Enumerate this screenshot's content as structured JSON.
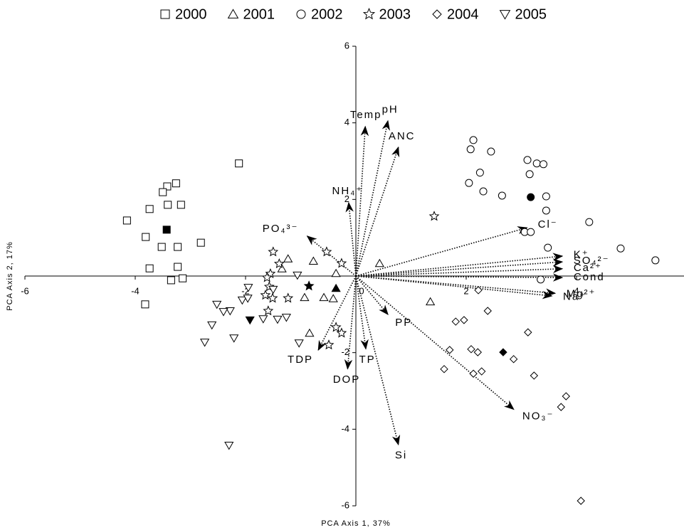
{
  "chart_data": {
    "type": "scatter",
    "xlabel": "PCA Axis 1, 37%",
    "ylabel": "PCA Axis 2, 17%",
    "xlim": [
      -6,
      6
    ],
    "ylim": [
      -6,
      6
    ],
    "xticks": [
      -6,
      -4,
      -2,
      0,
      2,
      4,
      6
    ],
    "yticks": [
      -6,
      -4,
      -2,
      2,
      4,
      6
    ],
    "series": [
      {
        "name": "2000",
        "marker": "square",
        "color": "#000000",
        "x": [
          -2.12,
          -3.26,
          -3.42,
          -3.5,
          -3.41,
          -3.17,
          -3.74,
          -4.15,
          -3.81,
          -3.52,
          -3.23,
          -2.81,
          -3.74,
          -3.23,
          -3.35,
          -3.14,
          -3.82
        ],
        "y": [
          2.94,
          2.42,
          2.34,
          2.19,
          1.86,
          1.86,
          1.75,
          1.45,
          1.02,
          0.76,
          0.76,
          0.87,
          0.2,
          0.24,
          -0.11,
          -0.06,
          -0.74
        ],
        "centroid": [
          -3.43,
          1.21
        ]
      },
      {
        "name": "2001",
        "marker": "triangle",
        "color": "#000000",
        "x": [
          -0.77,
          -1.23,
          0.43,
          -0.36,
          -0.58,
          -0.93,
          -0.41,
          -0.84,
          1.35,
          -1.34
        ],
        "y": [
          0.39,
          0.45,
          0.33,
          0.07,
          -0.56,
          -0.56,
          -0.59,
          -1.49,
          -0.67,
          0.19
        ],
        "centroid": [
          -0.36,
          -0.32
        ]
      },
      {
        "name": "2002",
        "marker": "circle",
        "color": "#000000",
        "x": [
          2.13,
          2.08,
          2.45,
          3.11,
          3.28,
          3.4,
          2.25,
          3.15,
          2.05,
          2.31,
          2.65,
          3.45,
          3.45,
          4.23,
          3.06,
          3.17,
          3.48,
          4.8,
          5.43,
          3.35
        ],
        "y": [
          3.55,
          3.31,
          3.25,
          3.03,
          2.94,
          2.92,
          2.7,
          2.66,
          2.43,
          2.21,
          2.1,
          2.08,
          1.71,
          1.41,
          1.15,
          1.15,
          0.74,
          0.72,
          0.41,
          -0.09
        ],
        "centroid": [
          3.17,
          2.06
        ]
      },
      {
        "name": "2003",
        "marker": "star",
        "color": "#000000",
        "x": [
          1.42,
          -0.53,
          -1.5,
          -1.39,
          -1.55,
          -1.61,
          -0.26,
          -1.57,
          -1.64,
          -1.51,
          -1.23,
          -1.59,
          -0.36,
          -0.26,
          -0.49
        ],
        "y": [
          1.56,
          0.63,
          0.63,
          0.32,
          0.06,
          -0.04,
          0.33,
          -0.28,
          -0.5,
          -0.58,
          -0.58,
          -0.91,
          -1.34,
          -1.49,
          -1.8
        ],
        "centroid": [
          -0.85,
          -0.26
        ]
      },
      {
        "name": "2004",
        "marker": "diamond",
        "color": "#000000",
        "x": [
          2.22,
          2.39,
          1.81,
          1.96,
          3.12,
          1.7,
          2.09,
          2.21,
          2.86,
          1.6,
          2.13,
          2.28,
          3.23,
          3.81,
          3.72,
          4.08
        ],
        "y": [
          -0.37,
          -0.91,
          -1.19,
          -1.15,
          -1.47,
          -1.93,
          -1.91,
          -1.99,
          -2.17,
          -2.43,
          -2.55,
          -2.49,
          -2.6,
          -3.14,
          -3.42,
          -5.87
        ],
        "centroid": [
          2.67,
          -1.99
        ]
      },
      {
        "name": "2005",
        "marker": "down-triangle",
        "color": "#000000",
        "x": [
          -1.06,
          -1.5,
          -1.95,
          -2.06,
          -2.52,
          -2.28,
          -2.4,
          -2.61,
          -1.68,
          -1.42,
          -1.26,
          -1.03,
          -2.21,
          -2.74,
          -2.3,
          -1.96
        ],
        "y": [
          0.02,
          -0.35,
          -0.3,
          -0.63,
          -0.74,
          -0.91,
          -0.93,
          -1.28,
          -1.12,
          -1.13,
          -1.08,
          -1.75,
          -1.62,
          -1.73,
          -4.42,
          -0.58
        ],
        "centroid": [
          -1.92,
          -1.15
        ]
      }
    ],
    "vectors": [
      {
        "label": "Temp",
        "x": 0.17,
        "y": 3.9
      },
      {
        "label": "pH",
        "x": 0.58,
        "y": 4.05
      },
      {
        "label": "ANC",
        "x": 0.77,
        "y": 3.36
      },
      {
        "label": "NH₄⁺",
        "x": -0.13,
        "y": 1.91
      },
      {
        "label": "PO₄³⁻",
        "x": -0.88,
        "y": 1.04
      },
      {
        "label": "Cl⁻",
        "x": 3.1,
        "y": 1.26
      },
      {
        "label": "K⁺",
        "x": 3.74,
        "y": 0.52
      },
      {
        "label": "SO₄²⁻",
        "x": 3.74,
        "y": 0.37
      },
      {
        "label": "Ca²⁺",
        "x": 3.74,
        "y": 0.19
      },
      {
        "label": "Cond",
        "x": 3.74,
        "y": -0.04
      },
      {
        "label": "Mg²⁺",
        "x": 3.61,
        "y": -0.45
      },
      {
        "label": "Na⁺",
        "x": 3.55,
        "y": -0.52
      },
      {
        "label": "PP",
        "x": 0.58,
        "y": -1.0
      },
      {
        "label": "TP",
        "x": 0.18,
        "y": -1.9
      },
      {
        "label": "DOP",
        "x": -0.15,
        "y": -2.42
      },
      {
        "label": "TDP",
        "x": -0.68,
        "y": -1.93
      },
      {
        "label": "NO₃⁻",
        "x": 2.86,
        "y": -3.48
      },
      {
        "label": "Si",
        "x": 0.77,
        "y": -4.4
      }
    ]
  }
}
